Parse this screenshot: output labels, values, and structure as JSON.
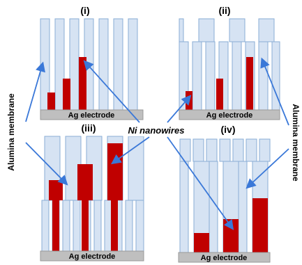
{
  "panels": [
    {
      "label": "(i)",
      "electrode": "Ag electrode"
    },
    {
      "label": "(ii)",
      "electrode": "Ag electrode"
    },
    {
      "label": "(iii)",
      "electrode": "Ag electrode"
    },
    {
      "label": "(iv)",
      "electrode": "Ag electrode"
    }
  ],
  "labels": {
    "membrane_left": "Alumina membrane",
    "membrane_right": "Alumina membrane",
    "nanowires": "Ni nanowires"
  },
  "colors": {
    "membrane_fill": "#d6e3f3",
    "membrane_stroke": "#8aaed6",
    "nanowire": "#c00000",
    "electrode": "#bfbfbf",
    "arrow": "#3a78d8"
  }
}
